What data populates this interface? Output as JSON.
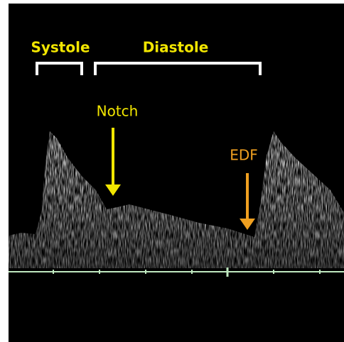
{
  "annotations": {
    "systole": "Systole",
    "diastole": "Diastole",
    "notch": "Notch",
    "edf": "EDF"
  }
}
